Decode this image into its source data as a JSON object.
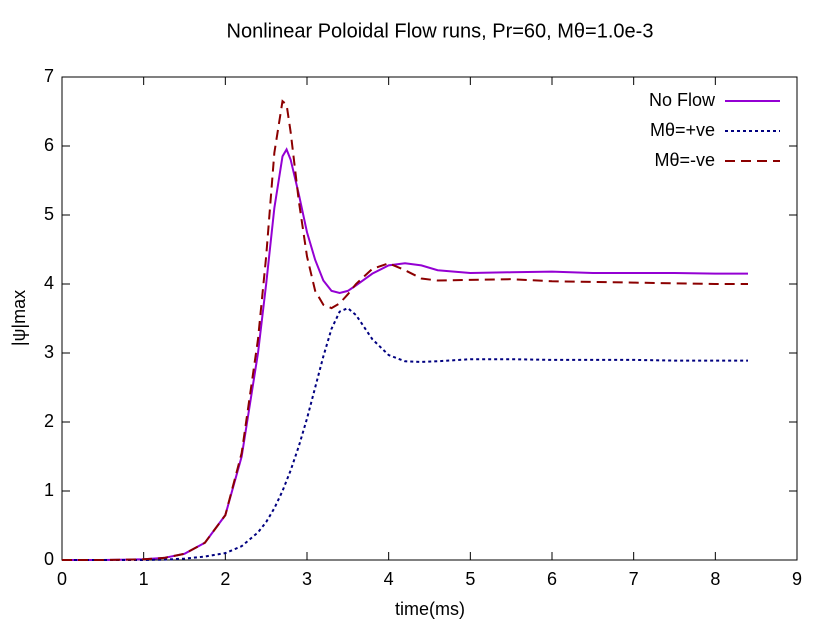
{
  "chart_data": {
    "type": "line",
    "title": "Nonlinear Poloidal Flow runs, Pr=60, Mθ=1.0e-3",
    "x_label": "time(ms)",
    "y_label": "|ψ|max",
    "x": [
      0,
      0.5,
      1,
      1.25,
      1.5,
      1.75,
      2,
      2.2,
      2.4,
      2.5,
      2.6,
      2.7,
      2.75,
      2.8,
      2.9,
      3,
      3.1,
      3.2,
      3.3,
      3.4,
      3.5,
      3.6,
      3.8,
      4,
      4.2,
      4.4,
      4.6,
      5,
      5.5,
      6,
      6.5,
      7,
      7.5,
      8,
      8.4
    ],
    "series": [
      {
        "name": "No Flow",
        "color": "#9400d3",
        "dash": "none",
        "values": [
          0,
          0,
          0.01,
          0.03,
          0.09,
          0.25,
          0.65,
          1.5,
          3.0,
          4.0,
          5.1,
          5.85,
          5.95,
          5.8,
          5.3,
          4.75,
          4.35,
          4.05,
          3.9,
          3.87,
          3.9,
          3.98,
          4.15,
          4.27,
          4.3,
          4.27,
          4.2,
          4.16,
          4.17,
          4.18,
          4.16,
          4.16,
          4.16,
          4.15,
          4.15
        ]
      },
      {
        "name": "Mθ=+ve",
        "color": "#000080",
        "dash": "3,3",
        "values": [
          0,
          0,
          0,
          0.005,
          0.02,
          0.05,
          0.1,
          0.2,
          0.4,
          0.55,
          0.75,
          1.0,
          1.15,
          1.3,
          1.65,
          2.05,
          2.5,
          2.95,
          3.35,
          3.6,
          3.65,
          3.55,
          3.2,
          2.97,
          2.88,
          2.87,
          2.88,
          2.91,
          2.91,
          2.9,
          2.9,
          2.9,
          2.89,
          2.89,
          2.89
        ]
      },
      {
        "name": "Mθ=-ve",
        "color": "#8b0000",
        "dash": "10,6",
        "values": [
          0,
          0,
          0.01,
          0.03,
          0.09,
          0.25,
          0.65,
          1.55,
          3.2,
          4.4,
          5.9,
          6.65,
          6.6,
          6.2,
          5.2,
          4.4,
          3.9,
          3.7,
          3.65,
          3.72,
          3.85,
          4.0,
          4.22,
          4.3,
          4.2,
          4.08,
          4.05,
          4.06,
          4.07,
          4.04,
          4.03,
          4.02,
          4.01,
          4.0,
          4.0
        ]
      }
    ],
    "xlim": [
      0,
      9
    ],
    "xticks": [
      0,
      1,
      2,
      3,
      4,
      5,
      6,
      7,
      8,
      9
    ],
    "ylim": [
      0,
      7
    ],
    "yticks": [
      0,
      1,
      2,
      3,
      4,
      5,
      6,
      7
    ],
    "legend": "top-right"
  }
}
